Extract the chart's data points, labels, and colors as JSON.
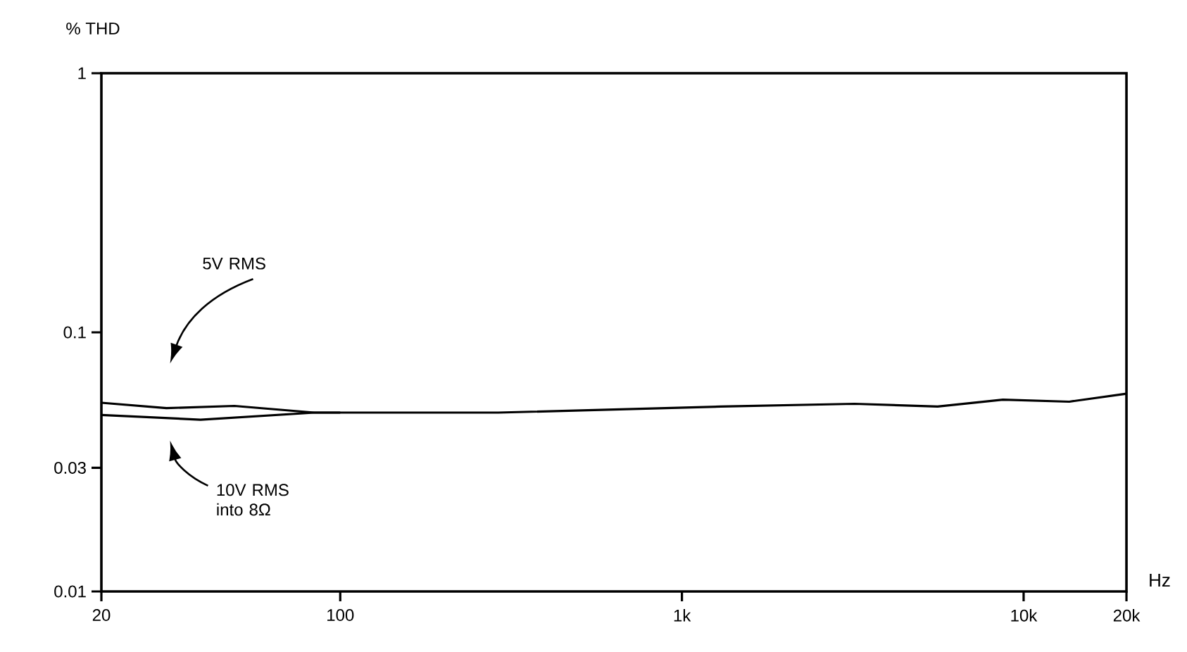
{
  "chart_data": {
    "type": "line",
    "xlabel": "Hz",
    "ylabel": "% THD",
    "log": "xy",
    "xlim": [
      20,
      20000
    ],
    "ylim": [
      0.01,
      1
    ],
    "xticks": [
      20,
      100,
      {
        "value": 1000,
        "label": "1k"
      },
      {
        "value": 10000,
        "label": "10k"
      },
      {
        "value": 20000,
        "label": "20k"
      }
    ],
    "yticks": [
      0.01,
      0.03,
      0.1,
      1
    ],
    "series": [
      {
        "color": "#000000",
        "x": [
          20,
          31,
          49,
          84,
          100,
          290,
          1300,
          3200,
          5600,
          8700,
          13600,
          20000
        ],
        "values": [
          0.0535,
          0.051,
          0.052,
          0.049,
          0.049,
          0.049,
          0.0517,
          0.053,
          0.0517,
          0.055,
          0.054,
          0.058
        ]
      },
      {
        "color": "#000000",
        "x": [
          20,
          39,
          84,
          100
        ],
        "values": [
          0.048,
          0.046,
          0.049,
          0.049
        ]
      }
    ],
    "annotations": [
      "5V RMS",
      "10V RMS into 8Ω"
    ]
  }
}
